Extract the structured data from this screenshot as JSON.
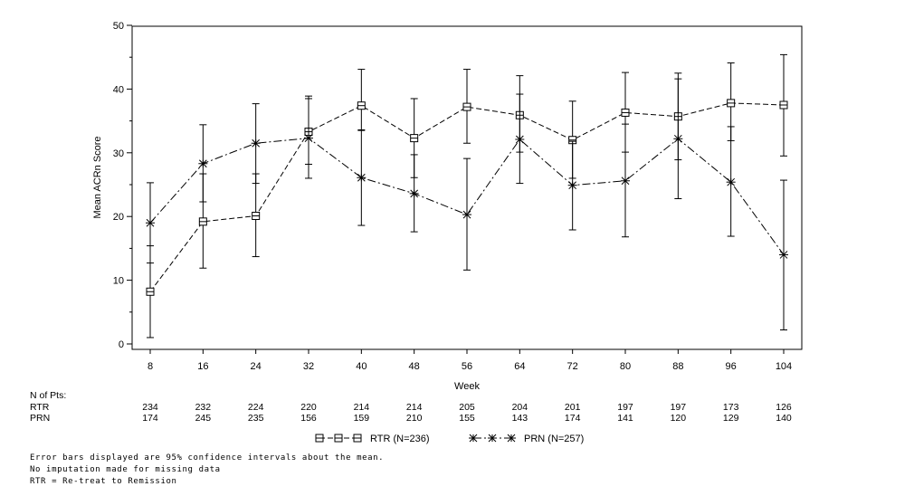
{
  "chart_data": {
    "type": "line",
    "ylabel": "Mean ACRn Score",
    "xlabel": "Week",
    "ylim": [
      0,
      50
    ],
    "yticks": [
      0,
      10,
      20,
      30,
      40,
      50
    ],
    "x": [
      8,
      16,
      24,
      32,
      40,
      48,
      56,
      64,
      72,
      80,
      88,
      96,
      104
    ],
    "series": [
      {
        "name": "RTR (N=236)",
        "marker": "square",
        "line_style": "dashed",
        "values": [
          8.2,
          19.2,
          20.1,
          33.3,
          37.4,
          32.3,
          37.2,
          35.9,
          32.0,
          36.3,
          35.7,
          37.8,
          37.5
        ],
        "ci_low": [
          1.0,
          11.9,
          13.7,
          28.2,
          33.5,
          26.1,
          31.5,
          30.1,
          26.0,
          30.1,
          28.9,
          31.9,
          29.5
        ],
        "ci_high": [
          15.4,
          26.7,
          26.7,
          38.5,
          43.1,
          38.5,
          43.1,
          42.1,
          38.1,
          42.6,
          42.5,
          44.1,
          45.4
        ]
      },
      {
        "name": "PRN (N=257)",
        "marker": "star",
        "line_style": "dash-dot",
        "values": [
          19.0,
          28.3,
          31.5,
          32.3,
          26.1,
          23.6,
          20.3,
          32.1,
          24.9,
          25.6,
          32.2,
          25.4,
          14.0
        ],
        "ci_low": [
          12.7,
          22.3,
          25.2,
          26.0,
          18.6,
          17.6,
          11.6,
          25.2,
          17.9,
          16.8,
          22.8,
          16.9,
          2.2
        ],
        "ci_high": [
          25.3,
          34.4,
          37.7,
          38.9,
          33.6,
          29.7,
          29.1,
          39.2,
          31.8,
          34.5,
          41.6,
          34.1,
          25.7
        ]
      }
    ],
    "legend_position": "bottom"
  },
  "npts": {
    "title": "N of Pts:",
    "rows": [
      {
        "label": "RTR",
        "values": [
          "234",
          "232",
          "224",
          "220",
          "214",
          "214",
          "205",
          "204",
          "201",
          "197",
          "197",
          "173",
          "126"
        ]
      },
      {
        "label": "PRN",
        "values": [
          "174",
          "245",
          "235",
          "156",
          "159",
          "210",
          "155",
          "143",
          "174",
          "141",
          "120",
          "129",
          "140"
        ]
      }
    ]
  },
  "footnotes": [
    "Error bars displayed are 95% confidence intervals about the mean.",
    "No imputation made for missing data",
    "RTR = Re-treat to Remission"
  ]
}
